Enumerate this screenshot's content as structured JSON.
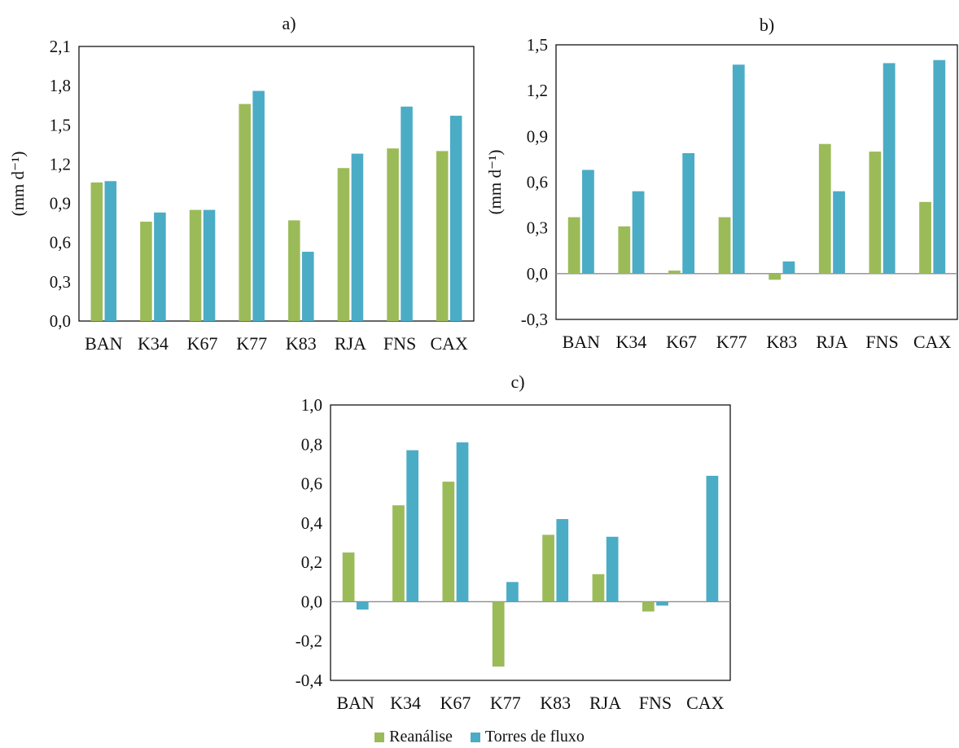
{
  "colors": {
    "reanalise": "#9bbb59",
    "torres": "#4bacc6",
    "axis": "#000000",
    "zero_line": "#8c8c8c"
  },
  "legend": [
    {
      "label": "Reanálise",
      "color": "#9bbb59"
    },
    {
      "label": "Torres de fluxo",
      "color": "#4bacc6"
    }
  ],
  "chart_data": [
    {
      "panel": "a)",
      "type": "bar",
      "title": "a)",
      "ylabel": "(mm d⁻¹)",
      "ylim": [
        0.0,
        2.1
      ],
      "yticks": [
        "0,0",
        "0,3",
        "0,6",
        "0,9",
        "1,2",
        "1,5",
        "1,8",
        "2,1"
      ],
      "categories": [
        "BAN",
        "K34",
        "K67",
        "K77",
        "K83",
        "RJA",
        "FNS",
        "CAX"
      ],
      "series": [
        {
          "name": "Reanálise",
          "values": [
            1.06,
            0.76,
            0.85,
            1.66,
            0.77,
            1.17,
            1.32,
            1.3
          ]
        },
        {
          "name": "Torres de fluxo",
          "values": [
            1.07,
            0.83,
            0.85,
            1.76,
            0.53,
            1.28,
            1.64,
            1.57
          ]
        }
      ]
    },
    {
      "panel": "b)",
      "type": "bar",
      "title": "b)",
      "ylabel": "(mm d⁻¹)",
      "ylim": [
        -0.3,
        1.5
      ],
      "yticks": [
        "-0,3",
        "0,0",
        "0,3",
        "0,6",
        "0,9",
        "1,2",
        "1,5"
      ],
      "categories": [
        "BAN",
        "K34",
        "K67",
        "K77",
        "K83",
        "RJA",
        "FNS",
        "CAX"
      ],
      "series": [
        {
          "name": "Reanálise",
          "values": [
            0.37,
            0.31,
            0.02,
            0.37,
            -0.04,
            0.85,
            0.8,
            0.47
          ]
        },
        {
          "name": "Torres de fluxo",
          "values": [
            0.68,
            0.54,
            0.79,
            1.37,
            0.08,
            0.54,
            1.38,
            1.4
          ]
        }
      ]
    },
    {
      "panel": "c)",
      "type": "bar",
      "title": "c)",
      "ylabel": "",
      "ylim": [
        -0.4,
        1.0
      ],
      "yticks": [
        "-0,4",
        "-0,2",
        "0,0",
        "0,2",
        "0,4",
        "0,6",
        "0,8",
        "1,0"
      ],
      "categories": [
        "BAN",
        "K34",
        "K67",
        "K77",
        "K83",
        "RJA",
        "FNS",
        "CAX"
      ],
      "series": [
        {
          "name": "Reanálise",
          "values": [
            0.25,
            0.49,
            0.61,
            -0.33,
            0.34,
            0.14,
            -0.05,
            0.0
          ]
        },
        {
          "name": "Torres de fluxo",
          "values": [
            -0.04,
            0.77,
            0.81,
            0.1,
            0.42,
            0.33,
            -0.02,
            0.64
          ]
        }
      ]
    }
  ]
}
